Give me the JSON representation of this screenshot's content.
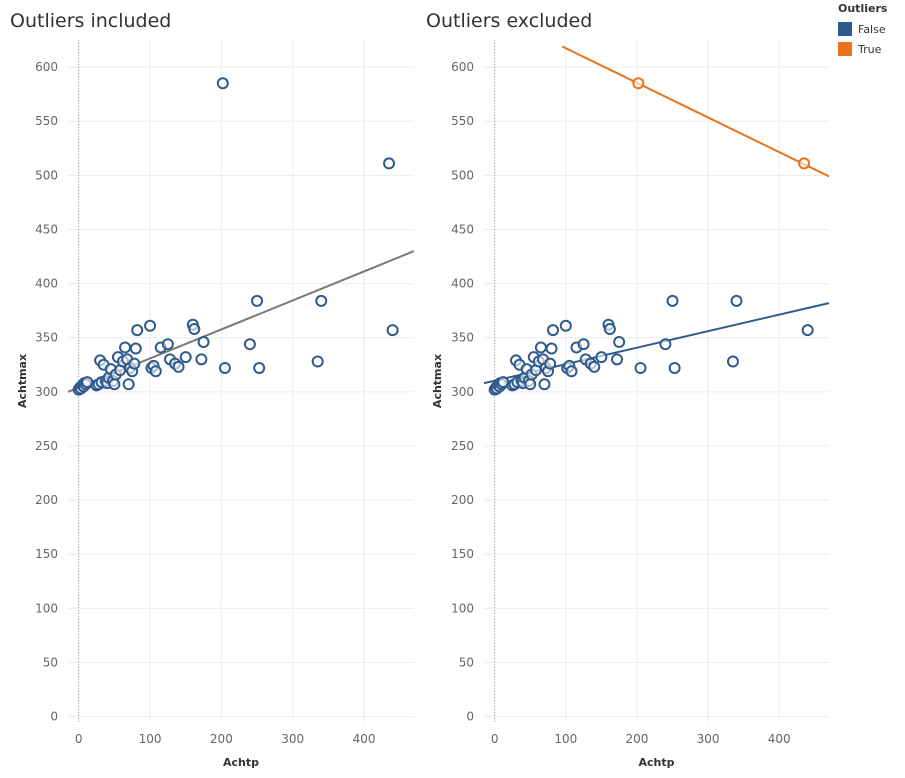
{
  "colors": {
    "false_series": "#2f5a8c",
    "true_series": "#e8731b",
    "regression_gray": "#7a7a7a",
    "grid": "#ececec",
    "axis_text": "#666666"
  },
  "legend": {
    "title": "Outliers",
    "items": [
      {
        "label": "False",
        "color": "#2f5a8c"
      },
      {
        "label": "True",
        "color": "#e8731b"
      }
    ]
  },
  "chart_data": [
    {
      "type": "scatter",
      "title": "Outliers included",
      "xlabel": "Achtp",
      "ylabel": "Achtmax",
      "xlim": [
        -15,
        470
      ],
      "ylim": [
        -5,
        625
      ],
      "xticks": [
        0,
        100,
        200,
        300,
        400
      ],
      "yticks": [
        0,
        50,
        100,
        150,
        200,
        250,
        300,
        350,
        400,
        450,
        500,
        550,
        600
      ],
      "grid": true,
      "series": [
        {
          "points": [
            [
              0,
              302
            ],
            [
              2,
              304
            ],
            [
              3,
              303
            ],
            [
              5,
              306
            ],
            [
              7,
              305
            ],
            [
              8,
              308
            ],
            [
              10,
              307
            ],
            [
              12,
              309
            ],
            [
              25,
              306
            ],
            [
              28,
              307
            ],
            [
              30,
              329
            ],
            [
              32,
              309
            ],
            [
              35,
              325
            ],
            [
              38,
              310
            ],
            [
              40,
              308
            ],
            [
              42,
              313
            ],
            [
              45,
              321
            ],
            [
              48,
              310
            ],
            [
              50,
              307
            ],
            [
              52,
              316
            ],
            [
              55,
              332
            ],
            [
              58,
              320
            ],
            [
              62,
              328
            ],
            [
              65,
              341
            ],
            [
              68,
              330
            ],
            [
              70,
              307
            ],
            [
              72,
              322
            ],
            [
              75,
              319
            ],
            [
              78,
              326
            ],
            [
              80,
              340
            ],
            [
              82,
              357
            ],
            [
              100,
              361
            ],
            [
              102,
              322
            ],
            [
              105,
              324
            ],
            [
              108,
              319
            ],
            [
              115,
              341
            ],
            [
              125,
              344
            ],
            [
              128,
              330
            ],
            [
              135,
              326
            ],
            [
              140,
              323
            ],
            [
              150,
              332
            ],
            [
              160,
              362
            ],
            [
              162,
              358
            ],
            [
              172,
              330
            ],
            [
              175,
              346
            ],
            [
              202,
              585
            ],
            [
              205,
              322
            ],
            [
              240,
              344
            ],
            [
              250,
              384
            ],
            [
              253,
              322
            ],
            [
              335,
              328
            ],
            [
              340,
              384
            ],
            [
              435,
              511
            ],
            [
              440,
              357
            ]
          ],
          "color": "#2f5a8c"
        }
      ],
      "trendlines": [
        {
          "x": [
            -15,
            470
          ],
          "y": [
            300,
            430
          ],
          "color": "#7a7a7a"
        }
      ]
    },
    {
      "type": "scatter",
      "title": "Outliers excluded",
      "xlabel": "Achtp",
      "ylabel": "Achtmax",
      "xlim": [
        -15,
        470
      ],
      "ylim": [
        -5,
        625
      ],
      "xticks": [
        0,
        100,
        200,
        300,
        400
      ],
      "yticks": [
        0,
        50,
        100,
        150,
        200,
        250,
        300,
        350,
        400,
        450,
        500,
        550,
        600
      ],
      "grid": true,
      "series": [
        {
          "name": "False",
          "points": [
            [
              0,
              302
            ],
            [
              2,
              304
            ],
            [
              3,
              303
            ],
            [
              5,
              306
            ],
            [
              7,
              305
            ],
            [
              8,
              308
            ],
            [
              10,
              307
            ],
            [
              12,
              309
            ],
            [
              25,
              306
            ],
            [
              28,
              307
            ],
            [
              30,
              329
            ],
            [
              32,
              309
            ],
            [
              35,
              325
            ],
            [
              38,
              310
            ],
            [
              40,
              308
            ],
            [
              42,
              313
            ],
            [
              45,
              321
            ],
            [
              48,
              310
            ],
            [
              50,
              307
            ],
            [
              52,
              316
            ],
            [
              55,
              332
            ],
            [
              58,
              320
            ],
            [
              62,
              328
            ],
            [
              65,
              341
            ],
            [
              68,
              330
            ],
            [
              70,
              307
            ],
            [
              72,
              322
            ],
            [
              75,
              319
            ],
            [
              78,
              326
            ],
            [
              80,
              340
            ],
            [
              82,
              357
            ],
            [
              100,
              361
            ],
            [
              102,
              322
            ],
            [
              105,
              324
            ],
            [
              108,
              319
            ],
            [
              115,
              341
            ],
            [
              125,
              344
            ],
            [
              128,
              330
            ],
            [
              135,
              326
            ],
            [
              140,
              323
            ],
            [
              150,
              332
            ],
            [
              160,
              362
            ],
            [
              162,
              358
            ],
            [
              172,
              330
            ],
            [
              175,
              346
            ],
            [
              205,
              322
            ],
            [
              240,
              344
            ],
            [
              250,
              384
            ],
            [
              253,
              322
            ],
            [
              335,
              328
            ],
            [
              340,
              384
            ],
            [
              440,
              357
            ]
          ],
          "color": "#2f5a8c"
        },
        {
          "name": "True",
          "points": [
            [
              202,
              585
            ],
            [
              435,
              511
            ]
          ],
          "color": "#e8731b"
        }
      ],
      "trendlines": [
        {
          "x": [
            -15,
            470
          ],
          "y": [
            308,
            382
          ],
          "color": "#2f5a8c"
        },
        {
          "x": [
            95,
            470
          ],
          "y": [
            619,
            499
          ],
          "color": "#e8731b"
        }
      ]
    }
  ]
}
